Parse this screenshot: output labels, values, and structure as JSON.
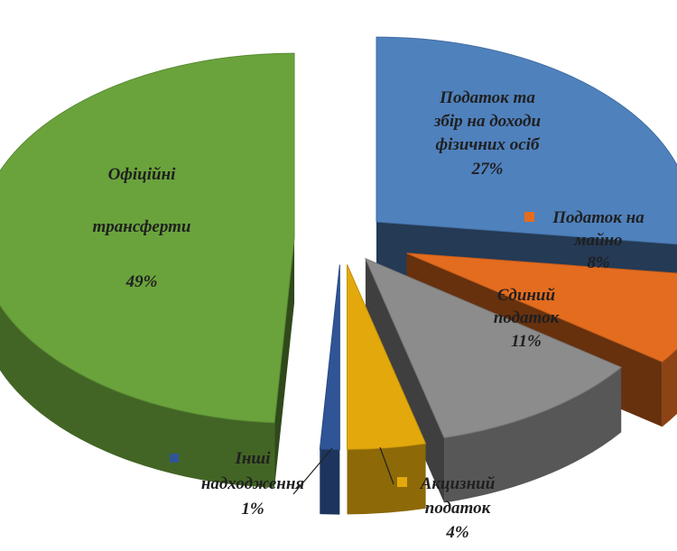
{
  "chart_data": {
    "type": "pie",
    "title": "",
    "slices": [
      {
        "label_lines": [
          "Податок та",
          "збір на доходи",
          "фізичних осіб"
        ],
        "pct_text": "27%",
        "value": 27,
        "color": "#4f81bd"
      },
      {
        "label_lines": [
          "Податок на",
          "майно"
        ],
        "pct_text": "8%",
        "value": 8,
        "color": "#e46c1f"
      },
      {
        "label_lines": [
          "Єдиний",
          "податок"
        ],
        "pct_text": "11%",
        "value": 11,
        "color": "#8c8c8c"
      },
      {
        "label_lines": [
          "Акцизний",
          "податок"
        ],
        "pct_text": "4%",
        "value": 4,
        "color": "#e3a90c"
      },
      {
        "label_lines": [
          "Інші",
          "надходження"
        ],
        "pct_text": "1%",
        "value": 1,
        "color": "#2f5597"
      },
      {
        "label_lines": [
          "Офіційні",
          "трансферти"
        ],
        "pct_text": "49%",
        "value": 49,
        "color": "#6aa33c"
      }
    ]
  }
}
